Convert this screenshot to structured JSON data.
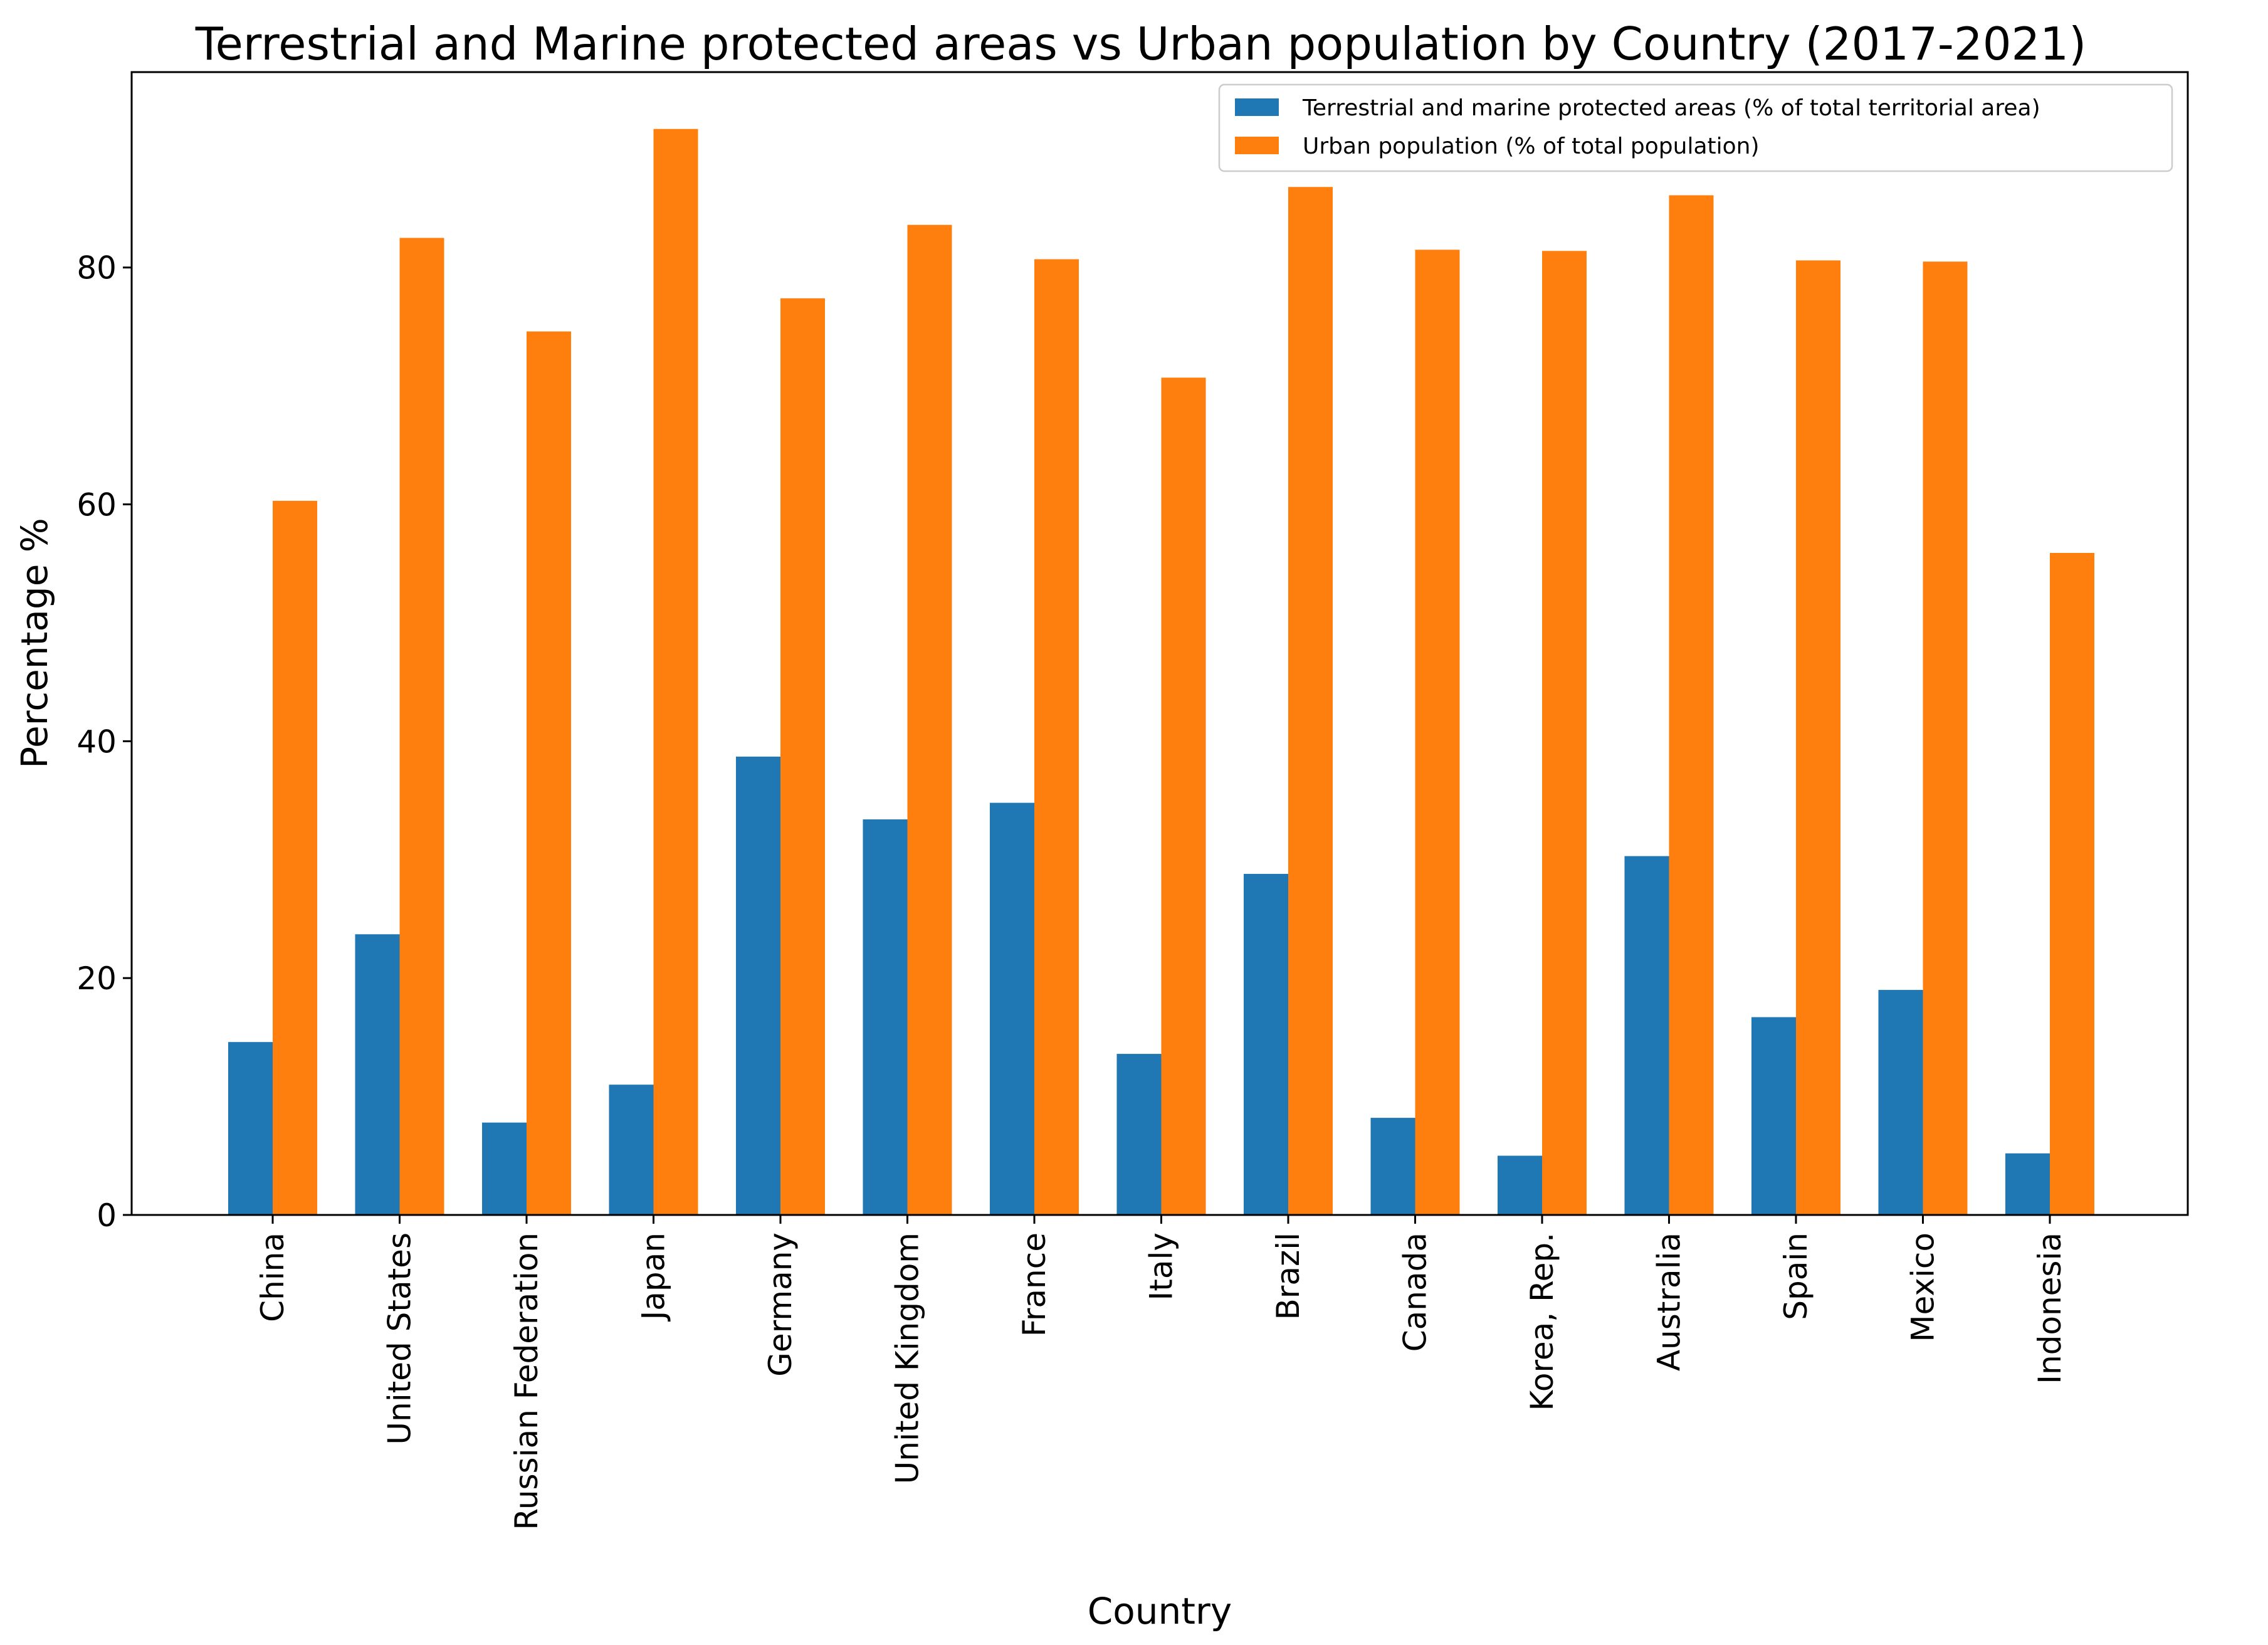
{
  "chart_data": {
    "type": "bar",
    "title": "Terrestrial and Marine protected areas vs Urban population by Country (2017-2021)",
    "xlabel": "Country",
    "ylabel": "Percentage %",
    "ylim": [
      0,
      96.5
    ],
    "yticks": [
      0,
      20,
      40,
      60,
      80
    ],
    "grid": false,
    "legend_position": "top-right",
    "categories": [
      "China",
      "United States",
      "Russian Federation",
      "Japan",
      "Germany",
      "United Kingdom",
      "France",
      "Italy",
      "Brazil",
      "Canada",
      "Korea, Rep.",
      "Australia",
      "Spain",
      "Mexico",
      "Indonesia"
    ],
    "series": [
      {
        "name": "Terrestrial and marine protected areas (% of total territorial area)",
        "color": "#1f77b4",
        "values": [
          14.6,
          23.7,
          7.8,
          11.0,
          38.7,
          33.4,
          34.8,
          13.6,
          28.8,
          8.2,
          5.0,
          30.3,
          16.7,
          19.0,
          5.2
        ]
      },
      {
        "name": "Urban population (% of total population)",
        "color": "#ff7f0e",
        "values": [
          60.3,
          82.5,
          74.6,
          91.7,
          77.4,
          83.6,
          80.7,
          70.7,
          86.8,
          81.5,
          81.4,
          86.1,
          80.6,
          80.5,
          55.9
        ]
      }
    ]
  }
}
